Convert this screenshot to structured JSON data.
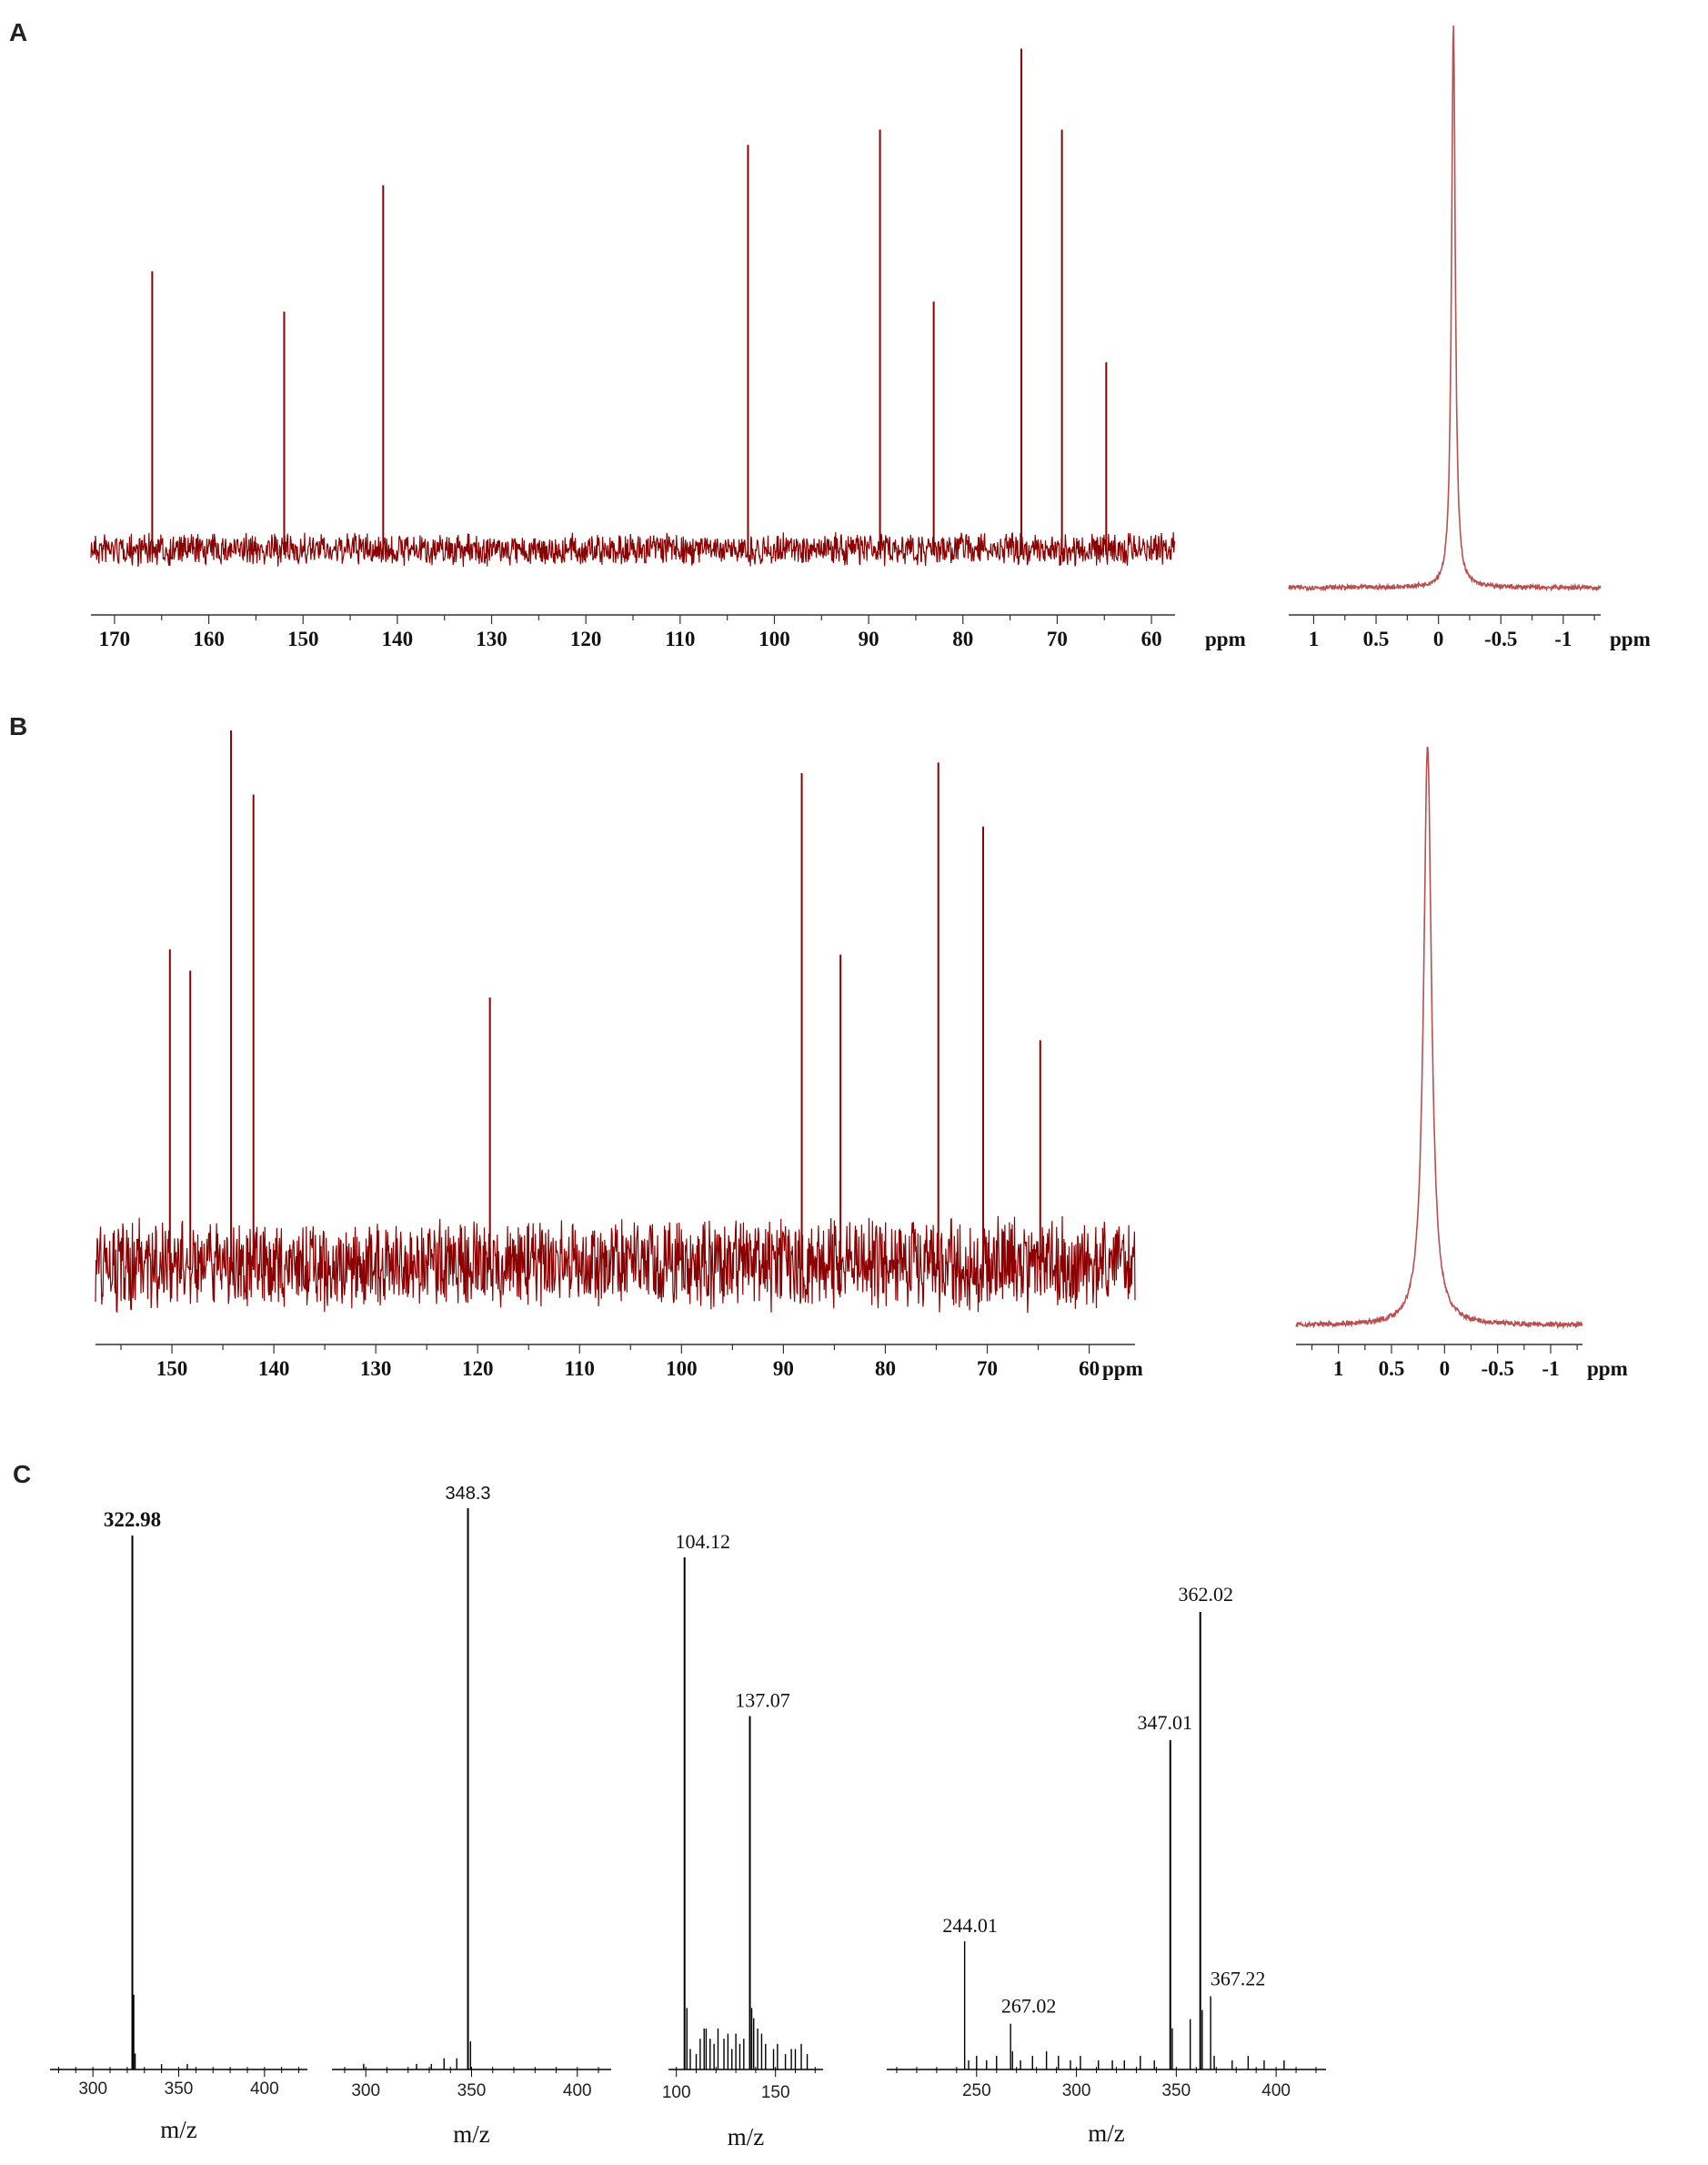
{
  "panels": {
    "A": "A",
    "B": "B",
    "C": "C"
  },
  "colors": {
    "nmr": "#8b0000",
    "nmr_light": "#b85050",
    "ms": "#000000"
  },
  "chart_data": [
    {
      "id": "A-13C",
      "panel": "A",
      "type": "line",
      "xlabel": "ppm",
      "xlim": [
        172.5,
        57.5
      ],
      "ylim": [
        0,
        1
      ],
      "xticks": [
        170,
        160,
        150,
        140,
        130,
        120,
        110,
        100,
        90,
        80,
        70,
        60
      ],
      "baseline": 0.1,
      "noise": 0.035,
      "peaks": [
        [
          166.0,
          0.55
        ],
        [
          152.0,
          0.47
        ],
        [
          141.5,
          0.72
        ],
        [
          102.8,
          0.8
        ],
        [
          88.8,
          0.83
        ],
        [
          83.1,
          0.49
        ],
        [
          73.8,
          0.99
        ],
        [
          69.5,
          0.83
        ],
        [
          64.8,
          0.37
        ]
      ]
    },
    {
      "id": "A-31P",
      "panel": "A",
      "type": "line",
      "xlabel": "ppm",
      "xlim": [
        1.2,
        -1.3
      ],
      "ylim": [
        0,
        1
      ],
      "xticks": [
        1.0,
        0.5,
        0.0,
        -0.5,
        -1.0
      ],
      "peak": {
        "x": -0.12,
        "height": 1.0,
        "width": 0.018
      }
    },
    {
      "id": "B-13C",
      "panel": "B",
      "type": "line",
      "xlabel": "ppm",
      "xlim": [
        157.5,
        55.5
      ],
      "ylim": [
        0,
        1
      ],
      "xticks": [
        150,
        140,
        130,
        120,
        110,
        100,
        90,
        80,
        70,
        60
      ],
      "baseline": 0.16,
      "noise": 0.095,
      "peaks": [
        [
          150.2,
          0.59
        ],
        [
          148.2,
          0.55
        ],
        [
          144.2,
          1.0
        ],
        [
          142.0,
          0.88
        ],
        [
          118.8,
          0.5
        ],
        [
          88.2,
          0.92
        ],
        [
          84.4,
          0.58
        ],
        [
          74.8,
          0.94
        ],
        [
          70.4,
          0.82
        ],
        [
          64.8,
          0.42
        ]
      ]
    },
    {
      "id": "B-31P",
      "panel": "B",
      "type": "line",
      "xlabel": "ppm",
      "xlim": [
        1.4,
        -1.3
      ],
      "ylim": [
        0,
        1
      ],
      "xticks": [
        1.0,
        0.5,
        0.0,
        -0.5,
        -1.0
      ],
      "peak": {
        "x": 0.16,
        "height": 1.0,
        "width": 0.045
      }
    },
    {
      "id": "C1",
      "panel": "C",
      "type": "bar",
      "xlabel": "m/z",
      "xlim": [
        275,
        425
      ],
      "ylim": [
        0,
        1
      ],
      "xticks": [
        300,
        350,
        400
      ],
      "peaks": [
        [
          322.98,
          1.0
        ],
        [
          323.8,
          0.14
        ],
        [
          324.6,
          0.03
        ],
        [
          340,
          0.01
        ],
        [
          355,
          0.01
        ]
      ],
      "labels": [
        {
          "x": 322.98,
          "y": 1.0,
          "text": "322.98",
          "bold": true
        }
      ]
    },
    {
      "id": "C2",
      "panel": "C",
      "type": "bar",
      "xlabel": "m/z",
      "xlim": [
        284,
        416
      ],
      "ylim": [
        0,
        1
      ],
      "xticks": [
        300,
        350,
        400
      ],
      "peaks": [
        [
          348.3,
          1.0
        ],
        [
          349.5,
          0.05
        ],
        [
          343,
          0.02
        ],
        [
          337,
          0.02
        ],
        [
          331,
          0.01
        ],
        [
          324,
          0.01
        ],
        [
          299,
          0.01
        ]
      ],
      "labels": [
        {
          "x": 348.3,
          "y": 1.0,
          "text": "348.3",
          "sans": true
        }
      ]
    },
    {
      "id": "C3",
      "panel": "C",
      "type": "bar",
      "xlabel": "m/z",
      "xlim": [
        96,
        174
      ],
      "ylim": [
        0,
        1
      ],
      "xticks": [
        100,
        150
      ],
      "peaks": [
        [
          104.12,
          1.0
        ],
        [
          105.3,
          0.12
        ],
        [
          107,
          0.04
        ],
        [
          110,
          0.03
        ],
        [
          112,
          0.06
        ],
        [
          114,
          0.08
        ],
        [
          115,
          0.08
        ],
        [
          117,
          0.06
        ],
        [
          119,
          0.05
        ],
        [
          121,
          0.08
        ],
        [
          124,
          0.06
        ],
        [
          126,
          0.07
        ],
        [
          128,
          0.04
        ],
        [
          130,
          0.07
        ],
        [
          132,
          0.05
        ],
        [
          134,
          0.06
        ],
        [
          137.07,
          0.69
        ],
        [
          138,
          0.12
        ],
        [
          139,
          0.1
        ],
        [
          141,
          0.08
        ],
        [
          143,
          0.07
        ],
        [
          145,
          0.05
        ],
        [
          149,
          0.04
        ],
        [
          151,
          0.05
        ],
        [
          155,
          0.03
        ],
        [
          158,
          0.04
        ],
        [
          160,
          0.04
        ],
        [
          163,
          0.05
        ],
        [
          166,
          0.03
        ]
      ],
      "labels": [
        {
          "x": 104.12,
          "y": 1.0,
          "text": "104.12"
        },
        {
          "x": 137.07,
          "y": 0.69,
          "text": "137.07"
        }
      ]
    },
    {
      "id": "C4",
      "panel": "C",
      "type": "bar",
      "xlabel": "m/z",
      "xlim": [
        205,
        425
      ],
      "ylim": [
        0,
        1
      ],
      "xticks": [
        250,
        300,
        350,
        400
      ],
      "peaks": [
        [
          244.01,
          0.28
        ],
        [
          246,
          0.02
        ],
        [
          250,
          0.03
        ],
        [
          255,
          0.02
        ],
        [
          260,
          0.03
        ],
        [
          267.02,
          0.1
        ],
        [
          268,
          0.04
        ],
        [
          272,
          0.02
        ],
        [
          278,
          0.03
        ],
        [
          285,
          0.04
        ],
        [
          291,
          0.03
        ],
        [
          297,
          0.02
        ],
        [
          302,
          0.03
        ],
        [
          311,
          0.02
        ],
        [
          318,
          0.02
        ],
        [
          324,
          0.02
        ],
        [
          332,
          0.03
        ],
        [
          339,
          0.02
        ],
        [
          347.01,
          0.72
        ],
        [
          348,
          0.09
        ],
        [
          357,
          0.11
        ],
        [
          362.02,
          1.0
        ],
        [
          363,
          0.13
        ],
        [
          367.22,
          0.16
        ],
        [
          369,
          0.03
        ],
        [
          378,
          0.02
        ],
        [
          386,
          0.03
        ],
        [
          394,
          0.02
        ],
        [
          404,
          0.02
        ]
      ],
      "labels": [
        {
          "x": 244.01,
          "y": 0.28,
          "text": "244.01"
        },
        {
          "x": 267.02,
          "y": 0.1,
          "text": "267.02"
        },
        {
          "x": 347.01,
          "y": 0.72,
          "text": "347.01"
        },
        {
          "x": 362.02,
          "y": 1.0,
          "text": "362.02"
        },
        {
          "x": 367.22,
          "y": 0.16,
          "text": "367.22"
        }
      ]
    }
  ]
}
